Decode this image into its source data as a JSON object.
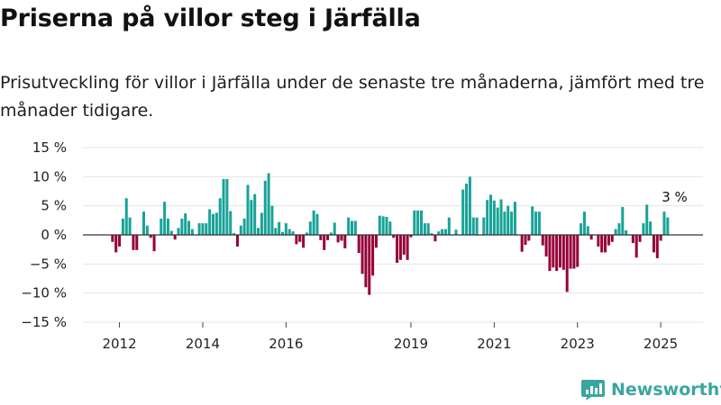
{
  "title": "Priserna på villor steg i Järfälla",
  "subtitle": "Prisutveckling för villor i Järfälla under de senaste tre månaderna, jämfört med tre månader tidigare.",
  "brand": "Newsworthy",
  "colors": {
    "positive": "#17a398",
    "negative": "#960039",
    "grid": "#e5e5e5",
    "zero": "#333333",
    "brand": "#3aa69f"
  },
  "chart_data": {
    "type": "bar",
    "x_start": "2011-10",
    "frequency": "monthly",
    "ylim": [
      -15,
      15
    ],
    "y_ticks": [
      -15,
      -10,
      -5,
      0,
      5,
      10,
      15
    ],
    "y_tick_labels": [
      "−15 %",
      "−10 %",
      "−5 %",
      "0 %",
      "5 %",
      "10 %",
      "15 %"
    ],
    "x_ticks": [
      "2012",
      "2014",
      "2016",
      "2019",
      "2021",
      "2023",
      "2025"
    ],
    "annotation": {
      "text": "3 %",
      "date": "2025-05"
    },
    "values": [
      0,
      -1.2,
      -3,
      -2,
      2.8,
      6.3,
      3,
      -2.6,
      -2.6,
      0,
      4,
      1.6,
      -0.5,
      -2.8,
      0,
      2.8,
      5.7,
      2.8,
      0.7,
      -0.8,
      1.2,
      2.8,
      3.7,
      2.4,
      1,
      0,
      2,
      2,
      2,
      4.4,
      3.6,
      3.8,
      6.3,
      9.6,
      9.6,
      4.1,
      0.3,
      -2,
      1.6,
      2.8,
      8.6,
      6,
      7,
      1.2,
      3.8,
      9.3,
      10.6,
      5,
      1.2,
      2.2,
      0.5,
      2,
      1,
      0.6,
      -1.6,
      -1.2,
      -2.2,
      0.4,
      2.3,
      4.2,
      3.6,
      -0.9,
      -2.6,
      -0.9,
      0.4,
      2.1,
      -1.3,
      -1,
      -2.3,
      3,
      2.4,
      2.4,
      -3.1,
      -6.7,
      -9,
      -10.3,
      -7,
      -2.2,
      3.3,
      3.2,
      3.1,
      2.3,
      -0.5,
      -4.8,
      -4.3,
      -3.4,
      -4.3,
      -0.4,
      4.2,
      4.2,
      4.2,
      2,
      2,
      0.3,
      -1.1,
      0.6,
      1,
      1,
      3,
      0,
      0.9,
      0,
      7.8,
      8.8,
      10,
      3,
      3,
      0,
      3,
      6,
      6.9,
      5.9,
      4.7,
      6.1,
      4,
      5,
      4,
      5.7,
      0,
      -2.9,
      -1.7,
      -1,
      4.9,
      4,
      4,
      -1.8,
      -3.7,
      -6.2,
      -5.6,
      -6.2,
      -5.6,
      -6,
      -9.8,
      -5.8,
      -5.8,
      -5.5,
      2,
      4,
      1.5,
      -0.8,
      0,
      -2,
      -3,
      -3,
      -1.8,
      -1.2,
      1,
      2,
      4.8,
      0.8,
      0,
      -1.4,
      -3.9,
      -1.2,
      2,
      5.2,
      2.3,
      -3,
      -4,
      -1,
      4,
      3
    ]
  }
}
